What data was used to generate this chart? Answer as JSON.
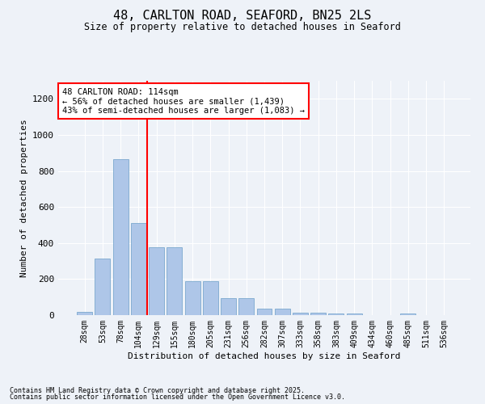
{
  "title_line1": "48, CARLTON ROAD, SEAFORD, BN25 2LS",
  "title_line2": "Size of property relative to detached houses in Seaford",
  "xlabel": "Distribution of detached houses by size in Seaford",
  "ylabel": "Number of detached properties",
  "categories": [
    "28sqm",
    "53sqm",
    "78sqm",
    "104sqm",
    "129sqm",
    "155sqm",
    "180sqm",
    "205sqm",
    "231sqm",
    "256sqm",
    "282sqm",
    "307sqm",
    "333sqm",
    "358sqm",
    "383sqm",
    "409sqm",
    "434sqm",
    "460sqm",
    "485sqm",
    "511sqm",
    "536sqm"
  ],
  "values": [
    20,
    315,
    865,
    510,
    375,
    375,
    190,
    190,
    95,
    95,
    38,
    38,
    15,
    15,
    10,
    10,
    0,
    0,
    10,
    0,
    0
  ],
  "bar_color": "#aec6e8",
  "bar_edge_color": "#6a9ec8",
  "vline_color": "red",
  "annotation_text": "48 CARLTON ROAD: 114sqm\n← 56% of detached houses are smaller (1,439)\n43% of semi-detached houses are larger (1,083) →",
  "annotation_box_color": "white",
  "annotation_box_edge_color": "red",
  "ylim": [
    0,
    1300
  ],
  "yticks": [
    0,
    200,
    400,
    600,
    800,
    1000,
    1200
  ],
  "footer_line1": "Contains HM Land Registry data © Crown copyright and database right 2025.",
  "footer_line2": "Contains public sector information licensed under the Open Government Licence v3.0.",
  "bg_color": "#eef2f8"
}
